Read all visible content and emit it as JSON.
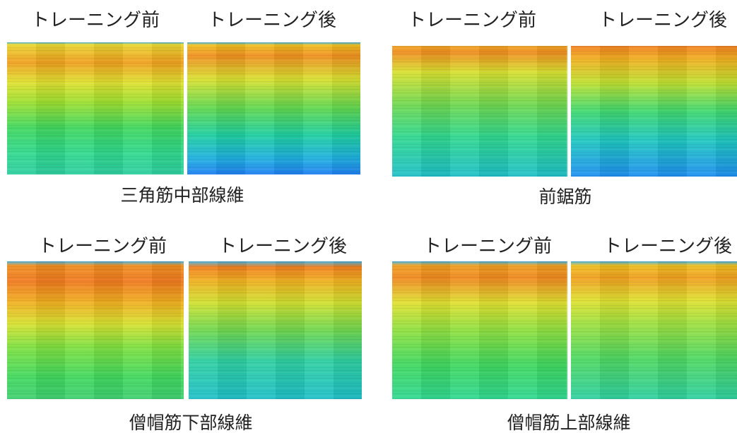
{
  "panels": [
    {
      "before_label": "トレーニング前",
      "after_label": "トレーニング後",
      "caption": "三角筋中部線維"
    },
    {
      "before_label": "トレーニング前",
      "after_label": "トレーニング後",
      "caption": "前鋸筋"
    },
    {
      "before_label": "トレーニング前",
      "after_label": "トレーニング後",
      "caption": "僧帽筋下部線維"
    },
    {
      "before_label": "トレーニング前",
      "after_label": "トレーニング後",
      "caption": "僧帽筋上部線維"
    }
  ]
}
